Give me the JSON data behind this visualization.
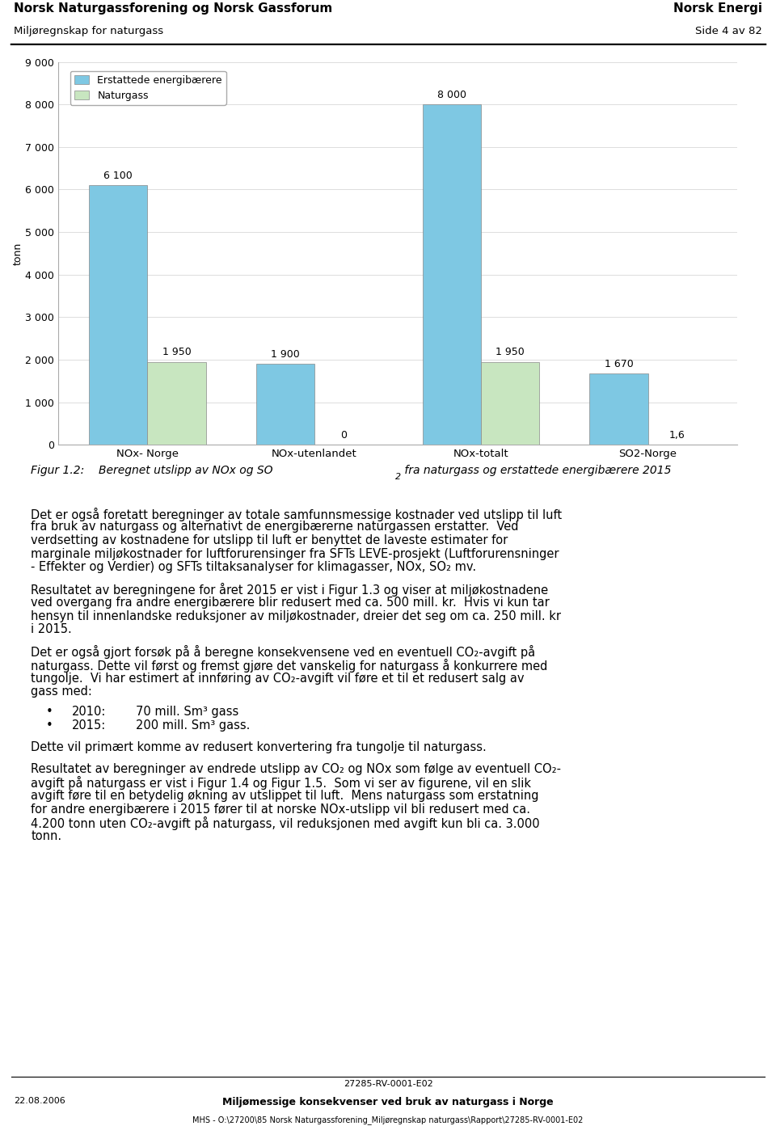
{
  "header_left_line1": "Norsk Naturgassforening og Norsk Gassforum",
  "header_left_line2": "Miljøregnskap for naturgass",
  "header_right_line1": "Norsk Energi",
  "header_right_line2": "Side 4 av 82",
  "chart_ylabel": "tonn",
  "chart_ylim": [
    0,
    9000
  ],
  "chart_yticks": [
    0,
    1000,
    2000,
    3000,
    4000,
    5000,
    6000,
    7000,
    8000,
    9000
  ],
  "categories": [
    "NOx- Norge",
    "NOx-utenlandet",
    "NOx-totalt",
    "SO2-Norge"
  ],
  "erstattede_values": [
    6100,
    1900,
    8000,
    1670
  ],
  "naturgass_values": [
    1950,
    0,
    1950,
    1.6
  ],
  "erstattede_color": "#7ec8e3",
  "naturgass_color": "#c8e6c0",
  "legend_erstattede": "Erstattede energibærere",
  "legend_naturgass": "Naturgass",
  "bar_width": 0.35,
  "bar_labels_erstattede": [
    "6 100",
    "1 900",
    "8 000",
    "1 670"
  ],
  "bar_labels_naturgass": [
    "1 950",
    "0",
    "1 950",
    "1,6"
  ],
  "footer_center": "27285-RV-0001-E02",
  "footer_left": "22.08.2006",
  "footer_right": "MHS - O:\\27200\\85 Norsk Naturgassforening_Miljøregnskap naturgass\\Rapport\\27285-RV-0001-E02",
  "footer_bold_center": "Miljømessige konsekvenser ved bruk av naturgass i Norge"
}
